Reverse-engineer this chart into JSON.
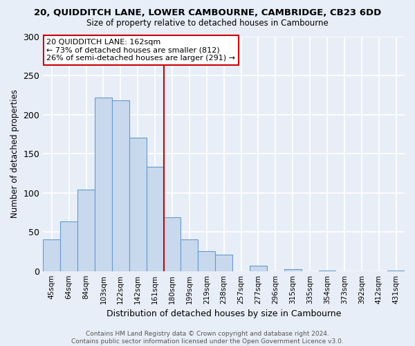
{
  "title": "20, QUIDDITCH LANE, LOWER CAMBOURNE, CAMBRIDGE, CB23 6DD",
  "subtitle": "Size of property relative to detached houses in Cambourne",
  "xlabel": "Distribution of detached houses by size in Cambourne",
  "ylabel": "Number of detached properties",
  "bin_labels": [
    "45sqm",
    "64sqm",
    "84sqm",
    "103sqm",
    "122sqm",
    "142sqm",
    "161sqm",
    "180sqm",
    "199sqm",
    "219sqm",
    "238sqm",
    "257sqm",
    "277sqm",
    "296sqm",
    "315sqm",
    "335sqm",
    "354sqm",
    "373sqm",
    "392sqm",
    "412sqm",
    "431sqm"
  ],
  "bar_values": [
    40,
    63,
    104,
    222,
    218,
    170,
    133,
    69,
    40,
    25,
    21,
    0,
    7,
    0,
    2,
    0,
    1,
    0,
    0,
    0,
    1
  ],
  "bar_color": "#c8d9ee",
  "bar_edge_color": "#6699cc",
  "vline_color": "#cc0000",
  "annotation_text": "20 QUIDDITCH LANE: 162sqm\n← 73% of detached houses are smaller (812)\n26% of semi-detached houses are larger (291) →",
  "annotation_box_color": "#ffffff",
  "annotation_box_edge": "#cc0000",
  "ylim": [
    0,
    300
  ],
  "yticks": [
    0,
    50,
    100,
    150,
    200,
    250,
    300
  ],
  "footer": "Contains HM Land Registry data © Crown copyright and database right 2024.\nContains public sector information licensed under the Open Government Licence v3.0.",
  "bg_color": "#e8eef7",
  "grid_color": "#ffffff",
  "title_fontsize": 9.5,
  "subtitle_fontsize": 8.5,
  "ylabel_fontsize": 8.5,
  "xlabel_fontsize": 9,
  "tick_fontsize": 7.5,
  "annotation_fontsize": 8,
  "footer_fontsize": 6.5
}
